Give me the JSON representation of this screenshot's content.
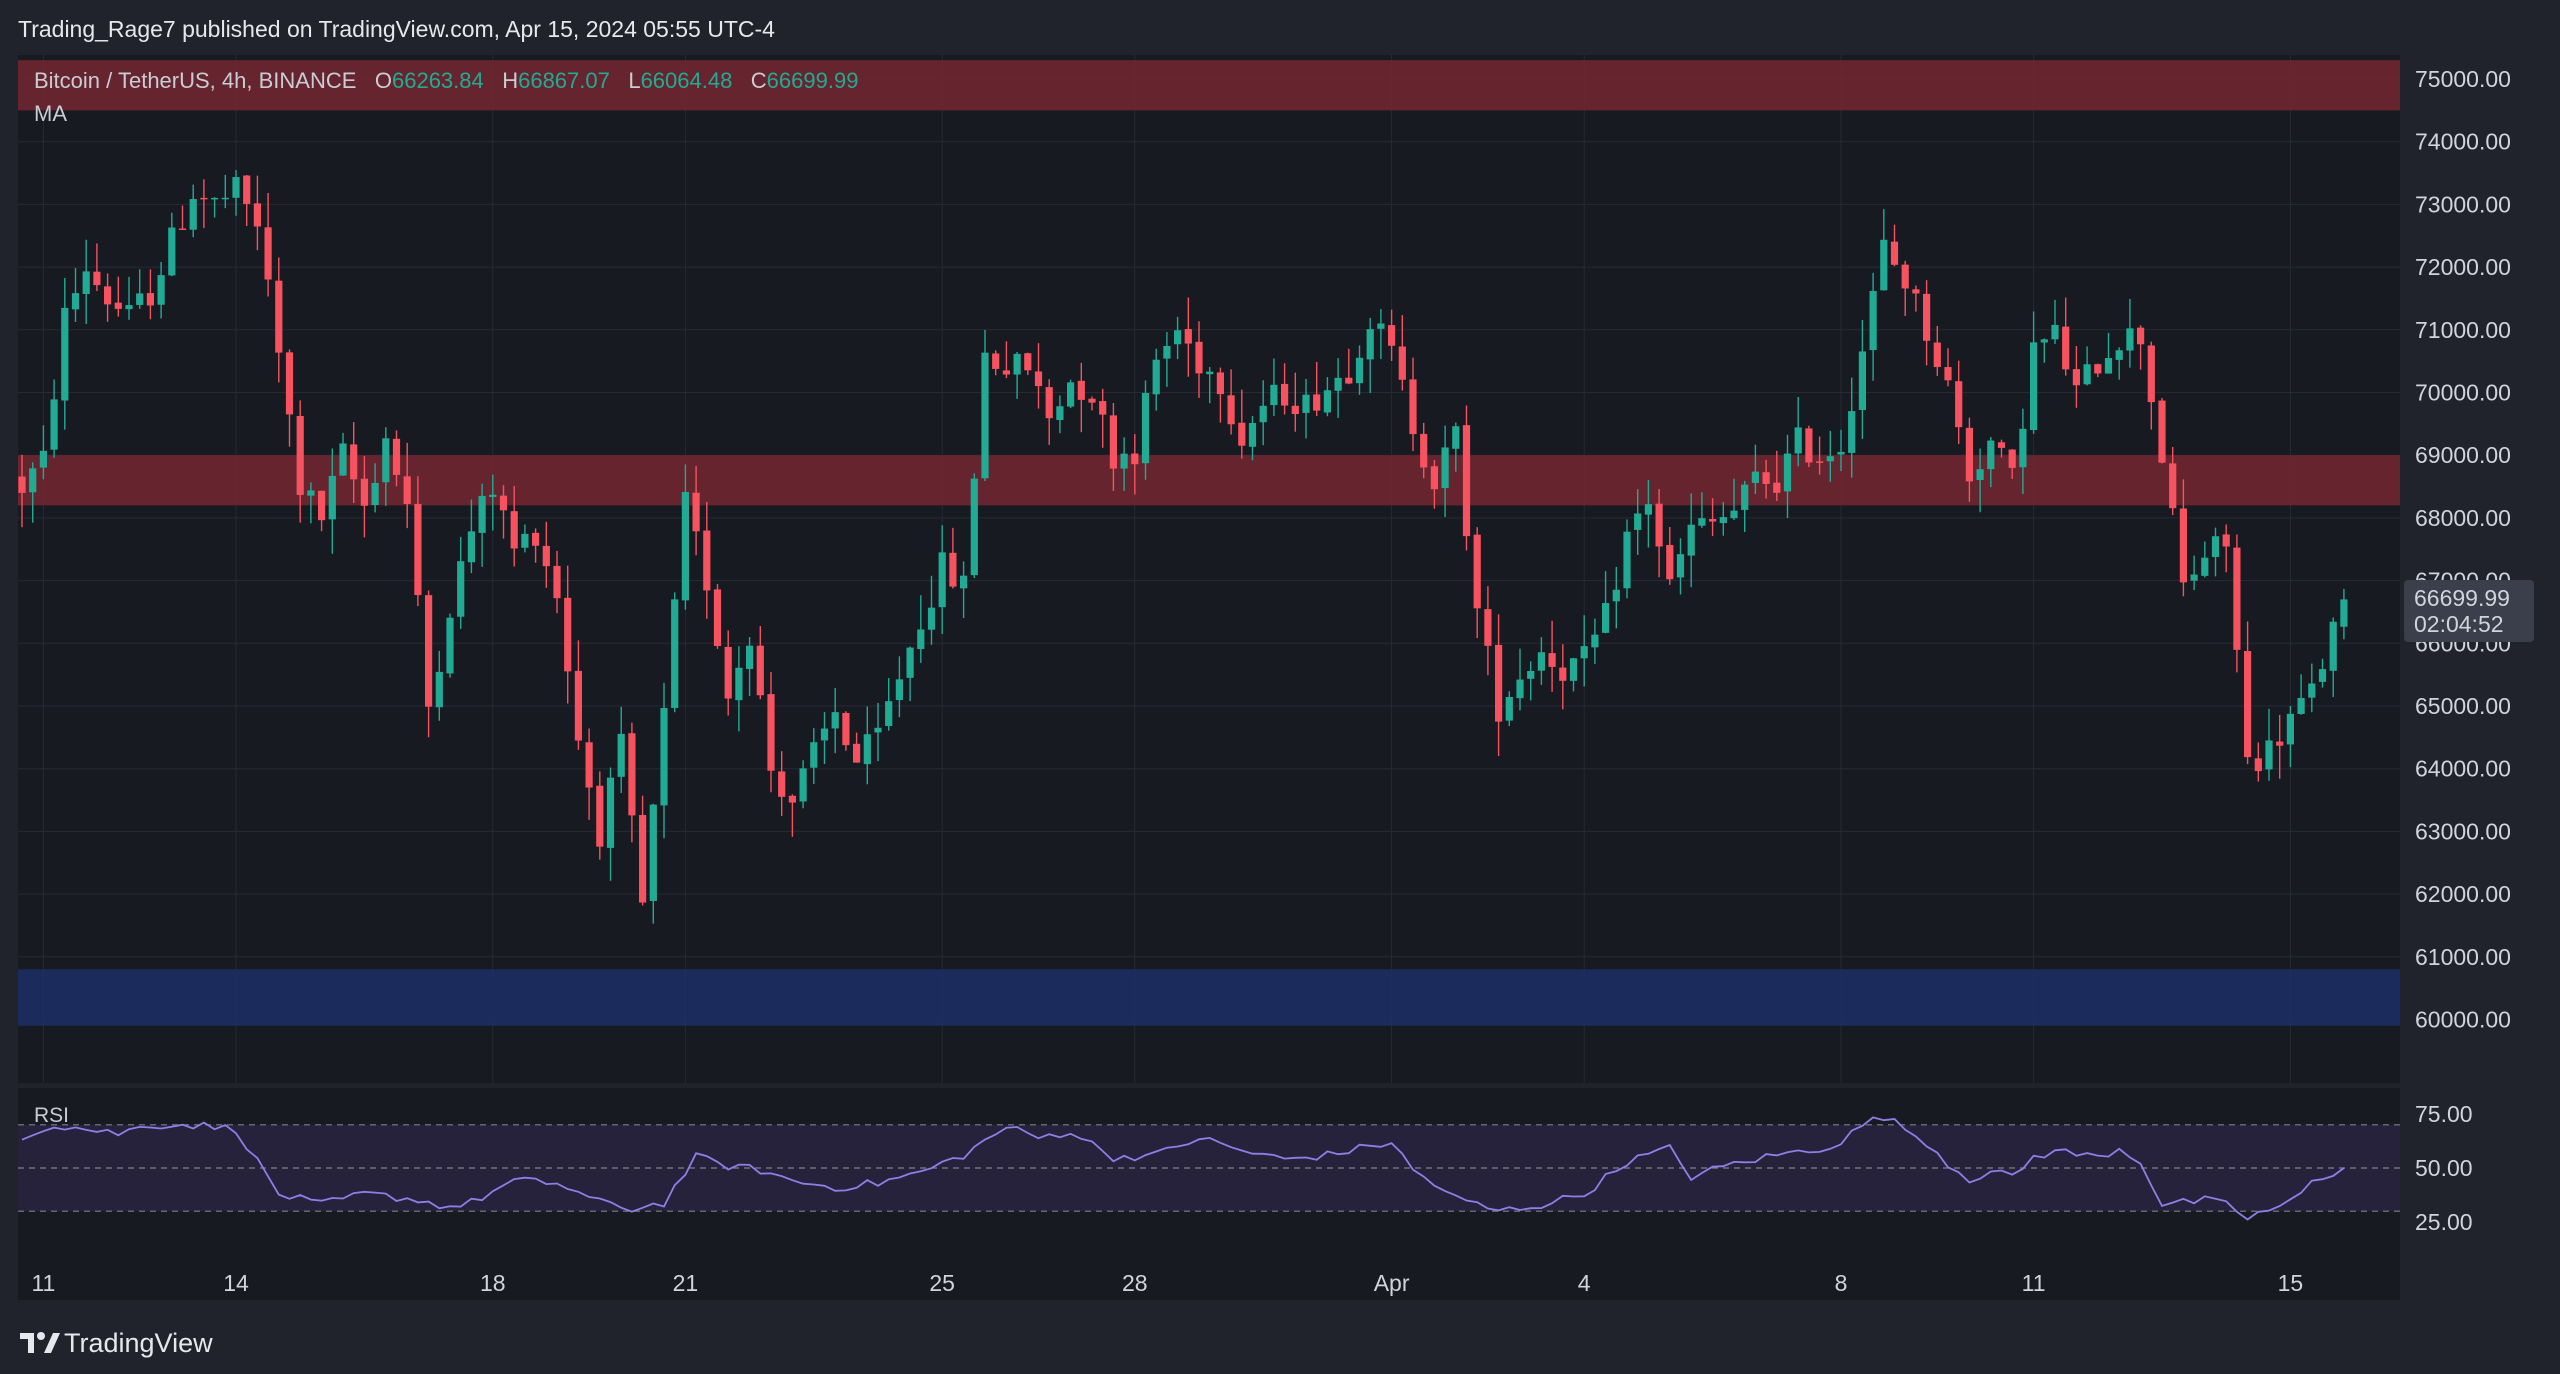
{
  "header": {
    "publisher": "Trading_Rage7 published on TradingView.com, Apr 15, 2024 05:55 UTC-4"
  },
  "legend": {
    "symbol": "Bitcoin / TetherUS, 4h, BINANCE",
    "open_key": "O",
    "open": "66263.84",
    "high_key": "H",
    "high": "66867.07",
    "low_key": "L",
    "low": "66064.48",
    "close_key": "C",
    "close": "66699.99",
    "indicator": "MA"
  },
  "price_badge": {
    "price": "66699.99",
    "countdown": "02:04:52"
  },
  "rsi_label": "RSI",
  "footer": {
    "brand": "TradingView"
  },
  "colors": {
    "background": "#20232c",
    "pane": "#181a22",
    "up": "#22ab94",
    "down": "#f7525f",
    "resistance_zone": "#6e2630",
    "support_zone": "#1c2e62",
    "rsi_line": "#8f7ee6",
    "rsi_band": "#2a2440"
  },
  "chart_data": [
    {
      "type": "candlestick",
      "title": "Bitcoin / TetherUS, 4h, BINANCE",
      "y_ticks": [
        "75000.00",
        "74000.00",
        "73000.00",
        "72000.00",
        "71000.00",
        "70000.00",
        "69000.00",
        "68000.00",
        "67000.00",
        "66000.00",
        "65000.00",
        "64000.00",
        "63000.00",
        "62000.00",
        "61000.00",
        "60000.00"
      ],
      "ylim": [
        59000,
        75500
      ],
      "x_ticks": [
        {
          "label": "11",
          "bar": 2
        },
        {
          "label": "14",
          "bar": 20
        },
        {
          "label": "18",
          "bar": 44
        },
        {
          "label": "21",
          "bar": 62
        },
        {
          "label": "25",
          "bar": 86
        },
        {
          "label": "28",
          "bar": 104
        },
        {
          "label": "Apr",
          "bar": 128
        },
        {
          "label": "4",
          "bar": 146
        },
        {
          "label": "8",
          "bar": 170
        },
        {
          "label": "11",
          "bar": 188
        },
        {
          "label": "15",
          "bar": 212
        }
      ],
      "zones": [
        {
          "name": "resistance-top",
          "from": 74500,
          "to": 75300
        },
        {
          "name": "resistance-mid",
          "from": 68200,
          "to": 69000
        },
        {
          "name": "support-bottom",
          "from": 59900,
          "to": 60800
        }
      ],
      "anchors": [
        [
          0,
          68500
        ],
        [
          2,
          68900
        ],
        [
          4,
          71200
        ],
        [
          6,
          72000
        ],
        [
          8,
          71500
        ],
        [
          10,
          71200
        ],
        [
          12,
          71600
        ],
        [
          16,
          73200
        ],
        [
          18,
          73000
        ],
        [
          20,
          73200
        ],
        [
          22,
          72700
        ],
        [
          24,
          70600
        ],
        [
          26,
          68500
        ],
        [
          28,
          68000
        ],
        [
          30,
          69000
        ],
        [
          32,
          68200
        ],
        [
          34,
          69300
        ],
        [
          36,
          68200
        ],
        [
          38,
          65000
        ],
        [
          40,
          66600
        ],
        [
          42,
          67800
        ],
        [
          44,
          68500
        ],
        [
          46,
          67500
        ],
        [
          48,
          67800
        ],
        [
          50,
          66800
        ],
        [
          52,
          64500
        ],
        [
          54,
          63000
        ],
        [
          56,
          64300
        ],
        [
          58,
          61800
        ],
        [
          60,
          64800
        ],
        [
          62,
          68200
        ],
        [
          64,
          67000
        ],
        [
          66,
          65200
        ],
        [
          68,
          66200
        ],
        [
          70,
          64000
        ],
        [
          72,
          63500
        ],
        [
          74,
          64200
        ],
        [
          76,
          64900
        ],
        [
          78,
          64100
        ],
        [
          80,
          64500
        ],
        [
          82,
          65500
        ],
        [
          84,
          66400
        ],
        [
          86,
          67200
        ],
        [
          88,
          66900
        ],
        [
          90,
          70600
        ],
        [
          92,
          70400
        ],
        [
          94,
          70400
        ],
        [
          96,
          69600
        ],
        [
          98,
          70200
        ],
        [
          100,
          70000
        ],
        [
          102,
          69000
        ],
        [
          104,
          69100
        ],
        [
          106,
          70500
        ],
        [
          108,
          71000
        ],
        [
          110,
          70500
        ],
        [
          112,
          70200
        ],
        [
          114,
          69300
        ],
        [
          116,
          69800
        ],
        [
          118,
          70000
        ],
        [
          120,
          69800
        ],
        [
          122,
          70100
        ],
        [
          124,
          70400
        ],
        [
          126,
          71200
        ],
        [
          128,
          70600
        ],
        [
          130,
          69500
        ],
        [
          132,
          68600
        ],
        [
          134,
          69300
        ],
        [
          136,
          66500
        ],
        [
          138,
          65000
        ],
        [
          140,
          65500
        ],
        [
          142,
          65900
        ],
        [
          144,
          65600
        ],
        [
          146,
          65700
        ],
        [
          148,
          66400
        ],
        [
          150,
          67700
        ],
        [
          152,
          68300
        ],
        [
          154,
          66900
        ],
        [
          156,
          67800
        ],
        [
          158,
          67900
        ],
        [
          160,
          68100
        ],
        [
          162,
          68600
        ],
        [
          164,
          68600
        ],
        [
          166,
          69200
        ],
        [
          168,
          69000
        ],
        [
          170,
          69200
        ],
        [
          172,
          70700
        ],
        [
          174,
          72300
        ],
        [
          176,
          71800
        ],
        [
          178,
          71000
        ],
        [
          180,
          70100
        ],
        [
          182,
          68700
        ],
        [
          184,
          69200
        ],
        [
          186,
          68600
        ],
        [
          188,
          70700
        ],
        [
          190,
          70900
        ],
        [
          192,
          70000
        ],
        [
          194,
          70500
        ],
        [
          196,
          70900
        ],
        [
          198,
          70900
        ],
        [
          200,
          69000
        ],
        [
          202,
          66900
        ],
        [
          204,
          67400
        ],
        [
          206,
          67600
        ],
        [
          208,
          64100
        ],
        [
          210,
          64300
        ],
        [
          212,
          64800
        ],
        [
          214,
          65200
        ],
        [
          216,
          66200
        ],
        [
          217,
          66700
        ]
      ],
      "last_bar": {
        "open": 66263.84,
        "high": 66867.07,
        "low": 66064.48,
        "close": 66699.99
      }
    },
    {
      "type": "line",
      "title": "RSI",
      "y_ticks": [
        "75.00",
        "50.00",
        "25.00"
      ],
      "ylim": [
        20,
        80
      ],
      "bands": [
        70,
        50,
        30
      ],
      "anchors": [
        [
          0,
          65
        ],
        [
          3,
          70
        ],
        [
          6,
          68
        ],
        [
          9,
          66
        ],
        [
          12,
          70
        ],
        [
          16,
          70
        ],
        [
          20,
          68
        ],
        [
          24,
          38
        ],
        [
          28,
          33
        ],
        [
          32,
          38
        ],
        [
          36,
          36
        ],
        [
          40,
          32
        ],
        [
          42,
          34
        ],
        [
          46,
          44
        ],
        [
          50,
          43
        ],
        [
          54,
          34
        ],
        [
          57,
          31
        ],
        [
          60,
          34
        ],
        [
          63,
          55
        ],
        [
          66,
          51
        ],
        [
          69,
          49
        ],
        [
          72,
          44
        ],
        [
          76,
          41
        ],
        [
          80,
          43
        ],
        [
          84,
          48
        ],
        [
          88,
          56
        ],
        [
          92,
          69
        ],
        [
          95,
          64
        ],
        [
          98,
          67
        ],
        [
          102,
          55
        ],
        [
          106,
          56
        ],
        [
          110,
          64
        ],
        [
          114,
          58
        ],
        [
          118,
          54
        ],
        [
          122,
          56
        ],
        [
          126,
          60
        ],
        [
          128,
          62
        ],
        [
          130,
          49
        ],
        [
          134,
          36
        ],
        [
          138,
          30
        ],
        [
          142,
          33
        ],
        [
          146,
          38
        ],
        [
          150,
          53
        ],
        [
          154,
          59
        ],
        [
          156,
          46
        ],
        [
          160,
          52
        ],
        [
          164,
          56
        ],
        [
          168,
          59
        ],
        [
          170,
          62
        ],
        [
          172,
          70
        ],
        [
          174,
          74
        ],
        [
          176,
          68
        ],
        [
          178,
          62
        ],
        [
          180,
          52
        ],
        [
          182,
          45
        ],
        [
          184,
          48
        ],
        [
          186,
          46
        ],
        [
          188,
          55
        ],
        [
          190,
          58
        ],
        [
          194,
          55
        ],
        [
          196,
          59
        ],
        [
          198,
          53
        ],
        [
          200,
          33
        ],
        [
          204,
          35
        ],
        [
          206,
          33
        ],
        [
          208,
          27
        ],
        [
          212,
          34
        ],
        [
          214,
          43
        ],
        [
          217,
          50
        ]
      ]
    }
  ]
}
